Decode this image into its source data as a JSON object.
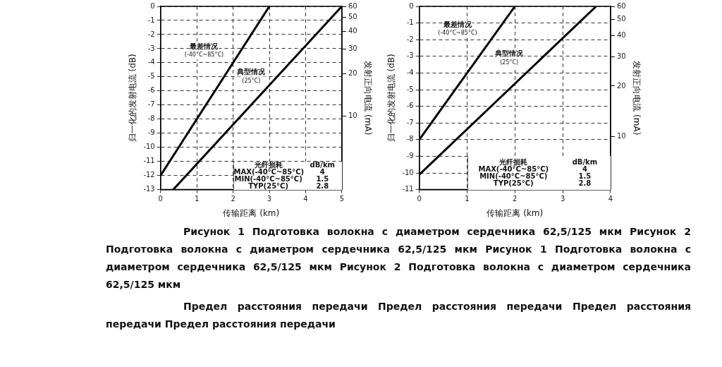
{
  "chart_data": [
    {
      "type": "line",
      "xlabel": "传输距离 (km)",
      "ylabel": "归一化的发射电流 (dB)",
      "y2label": "发射正向电流 (mA)",
      "xlim": [
        0,
        5
      ],
      "xticks": [
        0,
        1,
        2,
        3,
        4,
        5
      ],
      "ylim": [
        -13,
        0
      ],
      "yticks": [
        -13,
        -12,
        -11,
        -10,
        -9,
        -8,
        -7,
        -6,
        -5,
        -4,
        -3,
        -2,
        -1,
        0
      ],
      "log": "y2",
      "y2lim": [
        3.0,
        60
      ],
      "y2ticks": [
        10,
        20,
        30,
        40,
        50,
        60
      ],
      "grid": true,
      "marker": "none",
      "line_style": "solid",
      "series": [
        {
          "color": "#000000",
          "x": [
            0,
            3
          ],
          "values": [
            -12,
            0
          ]
        },
        {
          "color": "#000000",
          "x": [
            0.35,
            5
          ],
          "values": [
            -13,
            0
          ]
        }
      ],
      "annotations": [
        "最差情况\n(-40°C~85°C)",
        "典型情况\n(25°C)",
        "光纤损耗",
        "dB/km",
        "MAX(-40°C~85°C)",
        "4",
        "MIN(-40°C~85°C)",
        "1.5",
        "TYP(25°C)",
        "2.8"
      ]
    },
    {
      "type": "line",
      "xlabel": "传输距离 (km)",
      "ylabel": "归一化的发射电流 (dB)",
      "y2label": "发射正向电流 (mA)",
      "xlim": [
        0,
        4
      ],
      "xticks": [
        0,
        1,
        2,
        3,
        4
      ],
      "ylim": [
        -11,
        0
      ],
      "yticks": [
        -11,
        -10,
        -9,
        -8,
        -7,
        -6,
        -5,
        -4,
        -3,
        -2,
        -1,
        0
      ],
      "log": "y2",
      "y2lim": [
        4.8,
        60
      ],
      "y2ticks": [
        10,
        20,
        30,
        40,
        50,
        60
      ],
      "grid": true,
      "marker": "none",
      "line_style": "solid",
      "series": [
        {
          "color": "#000000",
          "x": [
            0,
            2
          ],
          "values": [
            -8,
            0
          ]
        },
        {
          "color": "#000000",
          "x": [
            0,
            3.7
          ],
          "values": [
            -10.1,
            0
          ]
        }
      ],
      "annotations": [
        "最差情况\n(-40°C~85°C)",
        "典型情况\n(25°C)",
        "光纤损耗",
        "dB/km",
        "MAX(-40°C~85°C)",
        "4",
        "MIN(-40°C~85°C)",
        "1.5",
        "TYP(25°C)",
        "2.8"
      ]
    },
    {
      "type": "other",
      "annotations": [
        "Рисунок 1 Подготовка волокна с диаметром сердечника 62,5/125 мкм Рисунок 2 Подготовка волокна с диаметром сердечника 62,5/125 мкм Рисунок 1 Подготовка волокна с диаметром сердечника 62,5/125 мкм Рисунок 2 Подготовка волокна с диаметром сердечника 62,5/125 мкм",
        "Предел расстояния передачи Предел расстояния передачи Предел расстояния передачи Предел расстояния передачи"
      ]
    }
  ]
}
